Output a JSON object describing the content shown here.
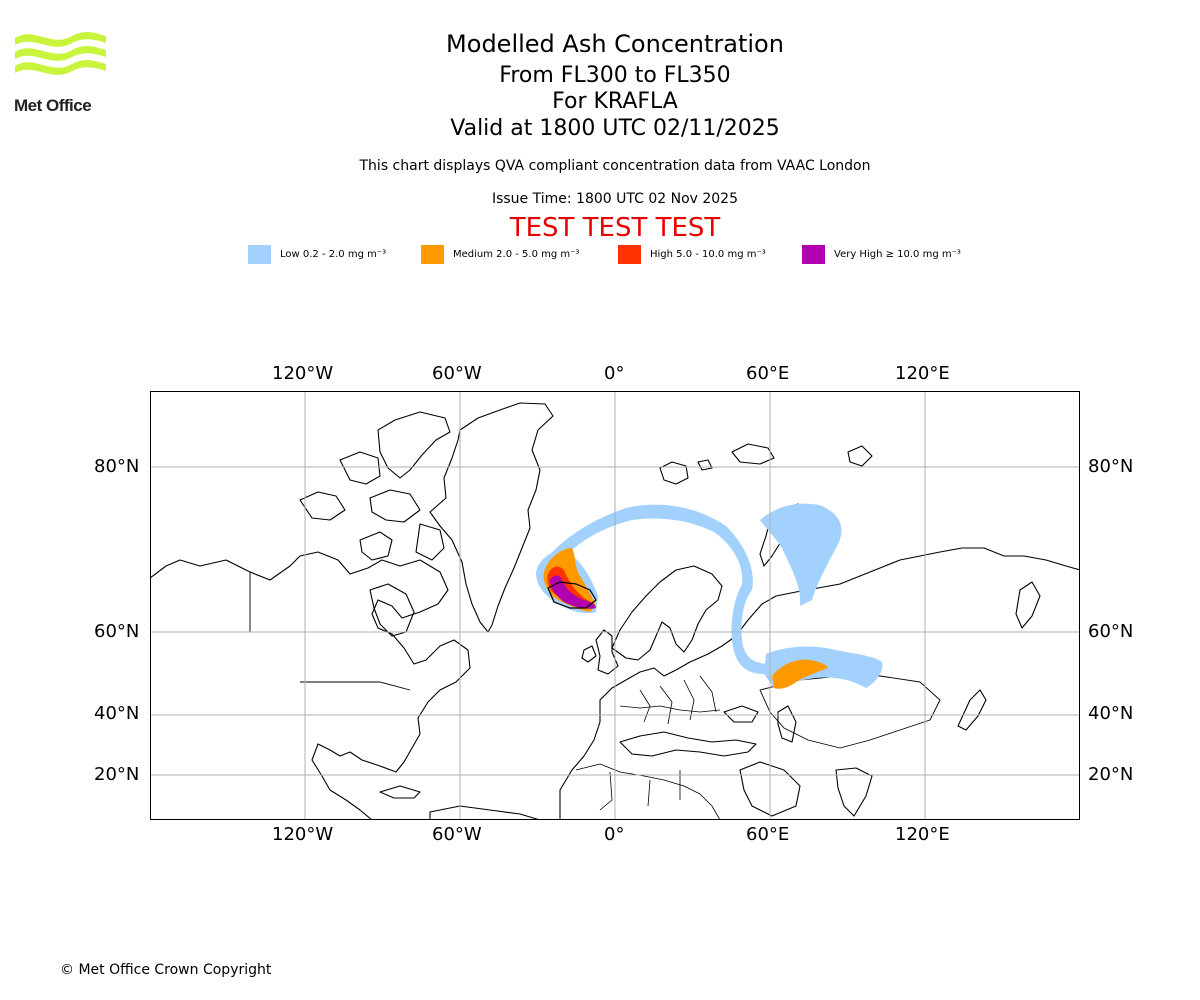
{
  "logo": {
    "text": "Met Office",
    "color": "#c8f53c"
  },
  "header": {
    "title": "Modelled Ash Concentration",
    "flight_levels": "From FL300 to FL350",
    "volcano": "For KRAFLA",
    "valid_time": "Valid at 1800 UTC 02/11/2025",
    "description": "This chart displays QVA compliant concentration data from VAAC London",
    "issue_time": "Issue Time: 1800 UTC 02 Nov 2025",
    "test_banner": "TEST TEST TEST",
    "test_color": "#e60000"
  },
  "legend": [
    {
      "label": "Low 0.2 - 2.0 mg m⁻³",
      "color": "#a1d1fc"
    },
    {
      "label": "Medium 2.0 - 5.0 mg m⁻³",
      "color": "#ff9900"
    },
    {
      "label": "High 5.0 - 10.0 mg m⁻³",
      "color": "#ff3300"
    },
    {
      "label": "Very High ≥ 10.0 mg m⁻³",
      "color": "#b000b0"
    }
  ],
  "map": {
    "lon_ticks": [
      "120°W",
      "60°W",
      "0°",
      "60°E",
      "120°E"
    ],
    "lat_ticks": [
      "80°N",
      "60°N",
      "40°N",
      "20°N"
    ]
  },
  "footer": {
    "copyright": "© Met Office Crown Copyright"
  }
}
